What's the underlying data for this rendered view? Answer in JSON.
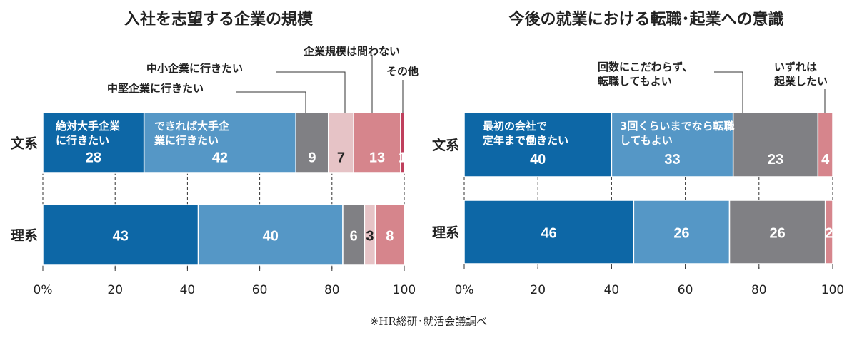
{
  "chart_data": [
    {
      "type": "bar",
      "stacked": true,
      "orientation": "horizontal",
      "title": "入社を志望する企業の規模",
      "categories": [
        "文系",
        "理系"
      ],
      "series": [
        {
          "name": "絶対大手企業に行きたい",
          "values": [
            28,
            43
          ],
          "color": "#0d67a6"
        },
        {
          "name": "できれば大手企業に行きたい",
          "values": [
            42,
            40
          ],
          "color": "#5597c6"
        },
        {
          "name": "中堅企業に行きたい",
          "values": [
            9,
            6
          ],
          "color": "#808084"
        },
        {
          "name": "中小企業に行きたい",
          "values": [
            7,
            3
          ],
          "color": "#e6c3c6"
        },
        {
          "name": "企業規模は問わない",
          "values": [
            13,
            8
          ],
          "color": "#d6858c"
        },
        {
          "name": "その他",
          "values": [
            1,
            0
          ],
          "color": "#bf3f5c"
        }
      ],
      "xlim": [
        0,
        100
      ],
      "xticks": [
        "0%",
        "20",
        "40",
        "60",
        "80",
        "100"
      ],
      "grid": true
    },
    {
      "type": "bar",
      "stacked": true,
      "orientation": "horizontal",
      "title": "今後の就業における転職･起業への意識",
      "categories": [
        "文系",
        "理系"
      ],
      "series": [
        {
          "name": "最初の会社で定年まで働きたい",
          "values": [
            40,
            46
          ],
          "color": "#0d67a6"
        },
        {
          "name": "3回くらいまでなら転職してもよい",
          "values": [
            33,
            26
          ],
          "color": "#5597c6"
        },
        {
          "name": "回数にこだわらず、転職してもよい",
          "values": [
            23,
            26
          ],
          "color": "#808084"
        },
        {
          "name": "いずれは起業したい",
          "values": [
            4,
            2
          ],
          "color": "#d6858c"
        }
      ],
      "xlim": [
        0,
        100
      ],
      "xticks": [
        "0%",
        "20",
        "40",
        "60",
        "80",
        "100"
      ],
      "grid": true
    }
  ],
  "source": "※HR総研･就活会議調べ"
}
